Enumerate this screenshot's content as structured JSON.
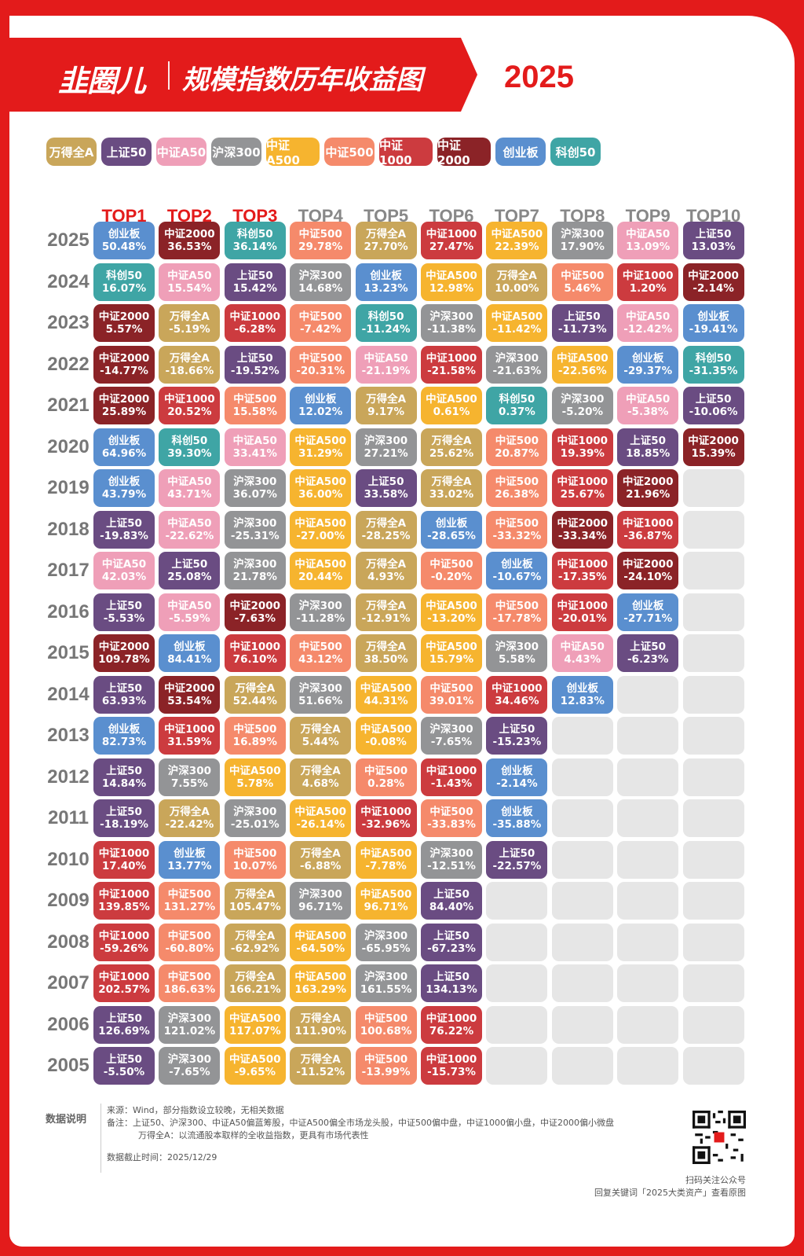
{
  "header": {
    "brand": "韭圈儿",
    "title": "规模指数历年收益图",
    "year": "2025"
  },
  "colors": {
    "万得全A": "#c9a65a",
    "上证50": "#6a4c82",
    "中证A50": "#ef9fb8",
    "沪深300": "#939496",
    "中证A500": "#f6b42f",
    "中证500": "#f58a6b",
    "中证1000": "#cc3b3f",
    "中证2000": "#8b2327",
    "创业板": "#5a8fcf",
    "科创50": "#3fa5a5"
  },
  "legend": [
    "万得全A",
    "上证50",
    "中证A50",
    "沪深300",
    "中证A500",
    "中证500",
    "中证1000",
    "中证2000",
    "创业板",
    "科创50"
  ],
  "chart_data": {
    "type": "table",
    "columns": [
      "TOP1",
      "TOP2",
      "TOP3",
      "TOP4",
      "TOP5",
      "TOP6",
      "TOP7",
      "TOP8",
      "TOP9",
      "TOP10"
    ],
    "highlight_columns": [
      0,
      1,
      2
    ],
    "rows": [
      {
        "year": "2025",
        "cells": [
          [
            "创业板",
            "50.48%"
          ],
          [
            "中证2000",
            "36.53%"
          ],
          [
            "科创50",
            "36.14%"
          ],
          [
            "中证500",
            "29.78%"
          ],
          [
            "万得全A",
            "27.70%"
          ],
          [
            "中证1000",
            "27.47%"
          ],
          [
            "中证A500",
            "22.39%"
          ],
          [
            "沪深300",
            "17.90%"
          ],
          [
            "中证A50",
            "13.09%"
          ],
          [
            "上证50",
            "13.03%"
          ]
        ]
      },
      {
        "year": "2024",
        "cells": [
          [
            "科创50",
            "16.07%"
          ],
          [
            "中证A50",
            "15.54%"
          ],
          [
            "上证50",
            "15.42%"
          ],
          [
            "沪深300",
            "14.68%"
          ],
          [
            "创业板",
            "13.23%"
          ],
          [
            "中证A500",
            "12.98%"
          ],
          [
            "万得全A",
            "10.00%"
          ],
          [
            "中证500",
            "5.46%"
          ],
          [
            "中证1000",
            "1.20%"
          ],
          [
            "中证2000",
            "-2.14%"
          ]
        ]
      },
      {
        "year": "2023",
        "cells": [
          [
            "中证2000",
            "5.57%"
          ],
          [
            "万得全A",
            "-5.19%"
          ],
          [
            "中证1000",
            "-6.28%"
          ],
          [
            "中证500",
            "-7.42%"
          ],
          [
            "科创50",
            "-11.24%"
          ],
          [
            "沪深300",
            "-11.38%"
          ],
          [
            "中证A500",
            "-11.42%"
          ],
          [
            "上证50",
            "-11.73%"
          ],
          [
            "中证A50",
            "-12.42%"
          ],
          [
            "创业板",
            "-19.41%"
          ]
        ]
      },
      {
        "year": "2022",
        "cells": [
          [
            "中证2000",
            "-14.77%"
          ],
          [
            "万得全A",
            "-18.66%"
          ],
          [
            "上证50",
            "-19.52%"
          ],
          [
            "中证500",
            "-20.31%"
          ],
          [
            "中证A50",
            "-21.19%"
          ],
          [
            "中证1000",
            "-21.58%"
          ],
          [
            "沪深300",
            "-21.63%"
          ],
          [
            "中证A500",
            "-22.56%"
          ],
          [
            "创业板",
            "-29.37%"
          ],
          [
            "科创50",
            "-31.35%"
          ]
        ]
      },
      {
        "year": "2021",
        "cells": [
          [
            "中证2000",
            "25.89%"
          ],
          [
            "中证1000",
            "20.52%"
          ],
          [
            "中证500",
            "15.58%"
          ],
          [
            "创业板",
            "12.02%"
          ],
          [
            "万得全A",
            "9.17%"
          ],
          [
            "中证A500",
            "0.61%"
          ],
          [
            "科创50",
            "0.37%"
          ],
          [
            "沪深300",
            "-5.20%"
          ],
          [
            "中证A50",
            "-5.38%"
          ],
          [
            "上证50",
            "-10.06%"
          ]
        ]
      },
      {
        "year": "2020",
        "cells": [
          [
            "创业板",
            "64.96%"
          ],
          [
            "科创50",
            "39.30%"
          ],
          [
            "中证A50",
            "33.41%"
          ],
          [
            "中证A500",
            "31.29%"
          ],
          [
            "沪深300",
            "27.21%"
          ],
          [
            "万得全A",
            "25.62%"
          ],
          [
            "中证500",
            "20.87%"
          ],
          [
            "中证1000",
            "19.39%"
          ],
          [
            "上证50",
            "18.85%"
          ],
          [
            "中证2000",
            "15.39%"
          ]
        ]
      },
      {
        "year": "2019",
        "cells": [
          [
            "创业板",
            "43.79%"
          ],
          [
            "中证A50",
            "43.71%"
          ],
          [
            "沪深300",
            "36.07%"
          ],
          [
            "中证A500",
            "36.00%"
          ],
          [
            "上证50",
            "33.58%"
          ],
          [
            "万得全A",
            "33.02%"
          ],
          [
            "中证500",
            "26.38%"
          ],
          [
            "中证1000",
            "25.67%"
          ],
          [
            "中证2000",
            "21.96%"
          ]
        ]
      },
      {
        "year": "2018",
        "cells": [
          [
            "上证50",
            "-19.83%"
          ],
          [
            "中证A50",
            "-22.62%"
          ],
          [
            "沪深300",
            "-25.31%"
          ],
          [
            "中证A500",
            "-27.00%"
          ],
          [
            "万得全A",
            "-28.25%"
          ],
          [
            "创业板",
            "-28.65%"
          ],
          [
            "中证500",
            "-33.32%"
          ],
          [
            "中证2000",
            "-33.34%"
          ],
          [
            "中证1000",
            "-36.87%"
          ]
        ]
      },
      {
        "year": "2017",
        "cells": [
          [
            "中证A50",
            "42.03%"
          ],
          [
            "上证50",
            "25.08%"
          ],
          [
            "沪深300",
            "21.78%"
          ],
          [
            "中证A500",
            "20.44%"
          ],
          [
            "万得全A",
            "4.93%"
          ],
          [
            "中证500",
            "-0.20%"
          ],
          [
            "创业板",
            "-10.67%"
          ],
          [
            "中证1000",
            "-17.35%"
          ],
          [
            "中证2000",
            "-24.10%"
          ]
        ]
      },
      {
        "year": "2016",
        "cells": [
          [
            "上证50",
            "-5.53%"
          ],
          [
            "中证A50",
            "-5.59%"
          ],
          [
            "中证2000",
            "-7.63%"
          ],
          [
            "沪深300",
            "-11.28%"
          ],
          [
            "万得全A",
            "-12.91%"
          ],
          [
            "中证A500",
            "-13.20%"
          ],
          [
            "中证500",
            "-17.78%"
          ],
          [
            "中证1000",
            "-20.01%"
          ],
          [
            "创业板",
            "-27.71%"
          ]
        ]
      },
      {
        "year": "2015",
        "cells": [
          [
            "中证2000",
            "109.78%"
          ],
          [
            "创业板",
            "84.41%"
          ],
          [
            "中证1000",
            "76.10%"
          ],
          [
            "中证500",
            "43.12%"
          ],
          [
            "万得全A",
            "38.50%"
          ],
          [
            "中证A500",
            "15.79%"
          ],
          [
            "沪深300",
            "5.58%"
          ],
          [
            "中证A50",
            "4.43%"
          ],
          [
            "上证50",
            "-6.23%"
          ]
        ]
      },
      {
        "year": "2014",
        "cells": [
          [
            "上证50",
            "63.93%"
          ],
          [
            "中证2000",
            "53.54%"
          ],
          [
            "万得全A",
            "52.44%"
          ],
          [
            "沪深300",
            "51.66%"
          ],
          [
            "中证A500",
            "44.31%"
          ],
          [
            "中证500",
            "39.01%"
          ],
          [
            "中证1000",
            "34.46%"
          ],
          [
            "创业板",
            "12.83%"
          ]
        ]
      },
      {
        "year": "2013",
        "cells": [
          [
            "创业板",
            "82.73%"
          ],
          [
            "中证1000",
            "31.59%"
          ],
          [
            "中证500",
            "16.89%"
          ],
          [
            "万得全A",
            "5.44%"
          ],
          [
            "中证A500",
            "-0.08%"
          ],
          [
            "沪深300",
            "-7.65%"
          ],
          [
            "上证50",
            "-15.23%"
          ]
        ]
      },
      {
        "year": "2012",
        "cells": [
          [
            "上证50",
            "14.84%"
          ],
          [
            "沪深300",
            "7.55%"
          ],
          [
            "中证A500",
            "5.78%"
          ],
          [
            "万得全A",
            "4.68%"
          ],
          [
            "中证500",
            "0.28%"
          ],
          [
            "中证1000",
            "-1.43%"
          ],
          [
            "创业板",
            "-2.14%"
          ]
        ]
      },
      {
        "year": "2011",
        "cells": [
          [
            "上证50",
            "-18.19%"
          ],
          [
            "万得全A",
            "-22.42%"
          ],
          [
            "沪深300",
            "-25.01%"
          ],
          [
            "中证A500",
            "-26.14%"
          ],
          [
            "中证1000",
            "-32.96%"
          ],
          [
            "中证500",
            "-33.83%"
          ],
          [
            "创业板",
            "-35.88%"
          ]
        ]
      },
      {
        "year": "2010",
        "cells": [
          [
            "中证1000",
            "17.40%"
          ],
          [
            "创业板",
            "13.77%"
          ],
          [
            "中证500",
            "10.07%"
          ],
          [
            "万得全A",
            "-6.88%"
          ],
          [
            "中证A500",
            "-7.78%"
          ],
          [
            "沪深300",
            "-12.51%"
          ],
          [
            "上证50",
            "-22.57%"
          ]
        ]
      },
      {
        "year": "2009",
        "cells": [
          [
            "中证1000",
            "139.85%"
          ],
          [
            "中证500",
            "131.27%"
          ],
          [
            "万得全A",
            "105.47%"
          ],
          [
            "沪深300",
            "96.71%"
          ],
          [
            "中证A500",
            "96.71%"
          ],
          [
            "上证50",
            "84.40%"
          ]
        ]
      },
      {
        "year": "2008",
        "cells": [
          [
            "中证1000",
            "-59.26%"
          ],
          [
            "中证500",
            "-60.80%"
          ],
          [
            "万得全A",
            "-62.92%"
          ],
          [
            "中证A500",
            "-64.50%"
          ],
          [
            "沪深300",
            "-65.95%"
          ],
          [
            "上证50",
            "-67.23%"
          ]
        ]
      },
      {
        "year": "2007",
        "cells": [
          [
            "中证1000",
            "202.57%"
          ],
          [
            "中证500",
            "186.63%"
          ],
          [
            "万得全A",
            "166.21%"
          ],
          [
            "中证A500",
            "163.29%"
          ],
          [
            "沪深300",
            "161.55%"
          ],
          [
            "上证50",
            "134.13%"
          ]
        ]
      },
      {
        "year": "2006",
        "cells": [
          [
            "上证50",
            "126.69%"
          ],
          [
            "沪深300",
            "121.02%"
          ],
          [
            "中证A500",
            "117.07%"
          ],
          [
            "万得全A",
            "111.90%"
          ],
          [
            "中证500",
            "100.68%"
          ],
          [
            "中证1000",
            "76.22%"
          ]
        ]
      },
      {
        "year": "2005",
        "cells": [
          [
            "上证50",
            "-5.50%"
          ],
          [
            "沪深300",
            "-7.65%"
          ],
          [
            "中证A500",
            "-9.65%"
          ],
          [
            "万得全A",
            "-11.52%"
          ],
          [
            "中证500",
            "-13.99%"
          ],
          [
            "中证1000",
            "-15.73%"
          ]
        ]
      }
    ]
  },
  "notes": {
    "label": "数据说明",
    "source": "来源：Wind，部分指数设立较晚，无相关数据",
    "remark1": "备注：上证50、沪深300、中证A50偏蓝筹股，中证A500偏全市场龙头股，中证500偏中盘，中证1000偏小盘，中证2000偏小微盘",
    "remark2": "万得全A：以流通股本取样的全收益指数，更具有市场代表性",
    "cutoff": "数据截止时间：2025/12/29",
    "qr_hint": "扫码关注公众号",
    "qr_hint2": "回复关键词「2025大类资产」查看原图"
  }
}
